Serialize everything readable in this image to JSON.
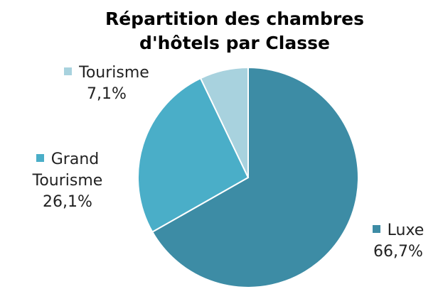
{
  "chart_data": {
    "type": "pie",
    "title": "Répartition des chambres d'hôtels par Classe",
    "categories": [
      "Luxe",
      "Grand Tourisme",
      "Tourisme"
    ],
    "values": [
      66.7,
      26.1,
      7.1
    ],
    "value_labels": [
      "66,7%",
      "26,1%",
      "7,1%"
    ],
    "colors": [
      "#3d8ca5",
      "#4aaec8",
      "#a8d2de"
    ]
  }
}
